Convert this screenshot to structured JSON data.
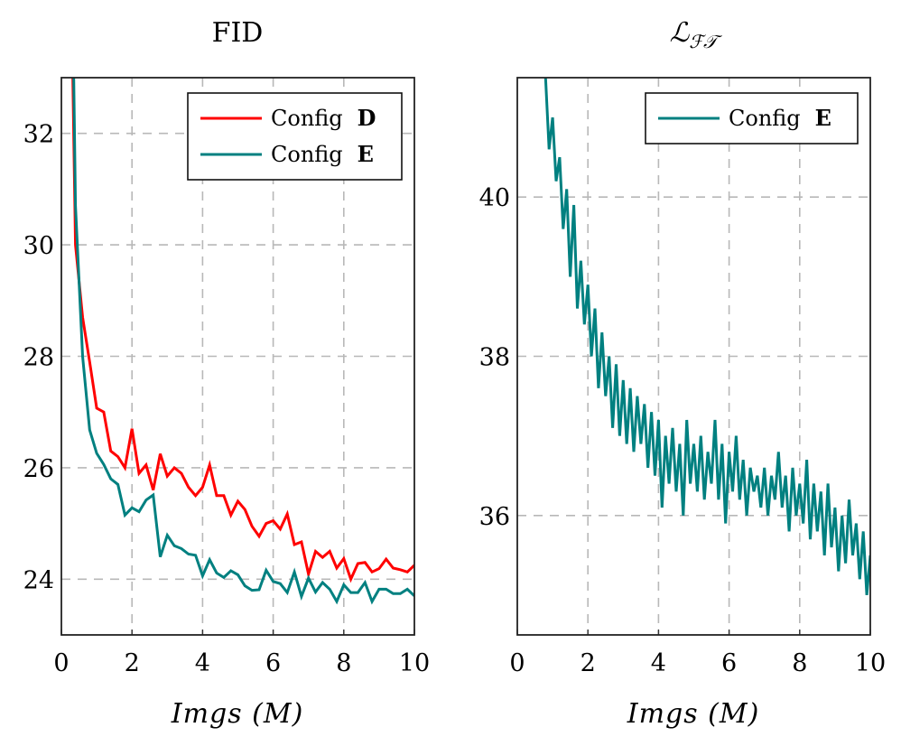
{
  "chart_data": [
    {
      "type": "line",
      "title": "FID",
      "xlabel": "Imgs (M)",
      "ylabel": "",
      "xlim": [
        0,
        10
      ],
      "ylim": [
        23,
        33
      ],
      "xticks": [
        0,
        2,
        4,
        6,
        8,
        10
      ],
      "yticks": [
        24,
        26,
        28,
        30,
        32
      ],
      "grid": true,
      "legend_position": "top-right",
      "series": [
        {
          "name": "Config D",
          "legend_plain": "Config ",
          "legend_bold": "D",
          "color": "#ff0000",
          "x": [
            0.2,
            0.4,
            0.6,
            0.8,
            1.0,
            1.2,
            1.4,
            1.6,
            1.8,
            2.0,
            2.2,
            2.4,
            2.6,
            2.8,
            3.0,
            3.2,
            3.4,
            3.6,
            3.8,
            4.0,
            4.2,
            4.4,
            4.6,
            4.8,
            5.0,
            5.2,
            5.4,
            5.6,
            5.8,
            6.0,
            6.2,
            6.4,
            6.6,
            6.8,
            7.0,
            7.2,
            7.4,
            7.6,
            7.8,
            8.0,
            8.2,
            8.4,
            8.6,
            8.8,
            9.0,
            9.2,
            9.4,
            9.6,
            9.8,
            10.0
          ],
          "y": [
            38,
            30.0,
            28.7,
            27.9,
            27.07,
            27.0,
            26.3,
            26.2,
            26.0,
            26.7,
            25.9,
            26.05,
            25.6,
            26.25,
            25.85,
            26.0,
            25.9,
            25.65,
            25.5,
            25.65,
            26.05,
            25.5,
            25.5,
            25.15,
            25.4,
            25.25,
            24.95,
            24.77,
            25.0,
            25.05,
            24.9,
            25.17,
            24.62,
            24.67,
            24.09,
            24.5,
            24.39,
            24.5,
            24.2,
            24.37,
            24.0,
            24.28,
            24.3,
            24.13,
            24.19,
            24.36,
            24.2,
            24.17,
            24.13,
            24.25
          ]
        },
        {
          "name": "Config E",
          "legend_plain": "Config ",
          "legend_bold": "E",
          "color": "#008080",
          "x": [
            0.2,
            0.4,
            0.6,
            0.8,
            1.0,
            1.2,
            1.4,
            1.6,
            1.8,
            2.0,
            2.2,
            2.4,
            2.6,
            2.8,
            3.0,
            3.2,
            3.4,
            3.6,
            3.8,
            4.0,
            4.2,
            4.4,
            4.6,
            4.8,
            5.0,
            5.2,
            5.4,
            5.6,
            5.8,
            6.0,
            6.2,
            6.4,
            6.6,
            6.8,
            7.0,
            7.2,
            7.4,
            7.6,
            7.8,
            8.0,
            8.2,
            8.4,
            8.6,
            8.8,
            9.0,
            9.2,
            9.4,
            9.6,
            9.8,
            10.0
          ],
          "y": [
            40,
            30.7,
            28.0,
            26.68,
            26.26,
            26.06,
            25.8,
            25.7,
            25.15,
            25.28,
            25.21,
            25.42,
            25.51,
            24.4,
            24.79,
            24.6,
            24.55,
            24.45,
            24.43,
            24.06,
            24.35,
            24.11,
            24.03,
            24.15,
            24.08,
            23.88,
            23.8,
            23.81,
            24.16,
            23.96,
            23.92,
            23.76,
            24.13,
            23.69,
            24.02,
            23.77,
            23.94,
            23.82,
            23.6,
            23.9,
            23.76,
            23.76,
            23.94,
            23.6,
            23.82,
            23.82,
            23.74,
            23.74,
            23.82,
            23.7
          ]
        }
      ]
    },
    {
      "type": "line",
      "title": "L_FT",
      "title_main": "ℒ",
      "title_sub": "ℱ𝒯",
      "xlabel": "Imgs (M)",
      "ylabel": "",
      "xlim": [
        0,
        10
      ],
      "ylim": [
        34.5,
        41.5
      ],
      "xticks": [
        0,
        2,
        4,
        6,
        8,
        10
      ],
      "yticks": [
        36,
        38,
        40
      ],
      "grid": true,
      "legend_position": "top-right",
      "series": [
        {
          "name": "Config E",
          "legend_plain": "Config ",
          "legend_bold": "E",
          "color": "#008080",
          "x": [
            0.8,
            0.9,
            1.0,
            1.1,
            1.2,
            1.3,
            1.4,
            1.5,
            1.6,
            1.7,
            1.8,
            1.9,
            2.0,
            2.1,
            2.2,
            2.3,
            2.4,
            2.5,
            2.6,
            2.7,
            2.8,
            2.9,
            3.0,
            3.1,
            3.2,
            3.3,
            3.4,
            3.5,
            3.6,
            3.7,
            3.8,
            3.9,
            4.0,
            4.1,
            4.2,
            4.3,
            4.4,
            4.5,
            4.6,
            4.7,
            4.8,
            4.9,
            5.0,
            5.1,
            5.2,
            5.3,
            5.4,
            5.5,
            5.6,
            5.7,
            5.8,
            5.9,
            6.0,
            6.1,
            6.2,
            6.3,
            6.4,
            6.5,
            6.6,
            6.7,
            6.8,
            6.9,
            7.0,
            7.1,
            7.2,
            7.3,
            7.4,
            7.5,
            7.6,
            7.7,
            7.8,
            7.9,
            8.0,
            8.1,
            8.2,
            8.3,
            8.4,
            8.5,
            8.6,
            8.7,
            8.8,
            8.9,
            9.0,
            9.1,
            9.2,
            9.3,
            9.4,
            9.5,
            9.6,
            9.7,
            9.8,
            9.9,
            10.0
          ],
          "y": [
            41.5,
            40.6,
            41.0,
            40.2,
            40.5,
            39.6,
            40.1,
            39.0,
            39.9,
            38.6,
            39.2,
            38.4,
            38.9,
            38.0,
            38.6,
            37.6,
            38.3,
            37.5,
            38.0,
            37.1,
            37.9,
            37.0,
            37.7,
            36.9,
            37.6,
            36.8,
            37.5,
            36.9,
            37.4,
            36.6,
            37.3,
            36.5,
            37.2,
            36.1,
            37.0,
            36.4,
            37.1,
            36.3,
            36.9,
            36.0,
            37.2,
            36.4,
            36.9,
            36.3,
            37.0,
            36.2,
            36.8,
            36.4,
            37.2,
            36.2,
            36.9,
            35.9,
            36.8,
            36.3,
            37.0,
            36.2,
            36.7,
            36.0,
            36.6,
            36.3,
            36.5,
            36.1,
            36.6,
            36.0,
            36.5,
            36.2,
            36.8,
            36.1,
            36.5,
            35.8,
            36.6,
            36.0,
            36.4,
            35.9,
            36.7,
            35.7,
            36.4,
            35.8,
            36.3,
            35.5,
            36.4,
            35.6,
            36.1,
            35.3,
            36.0,
            35.4,
            36.2,
            35.5,
            35.9,
            35.2,
            35.8,
            35.0,
            35.5
          ]
        }
      ]
    }
  ]
}
